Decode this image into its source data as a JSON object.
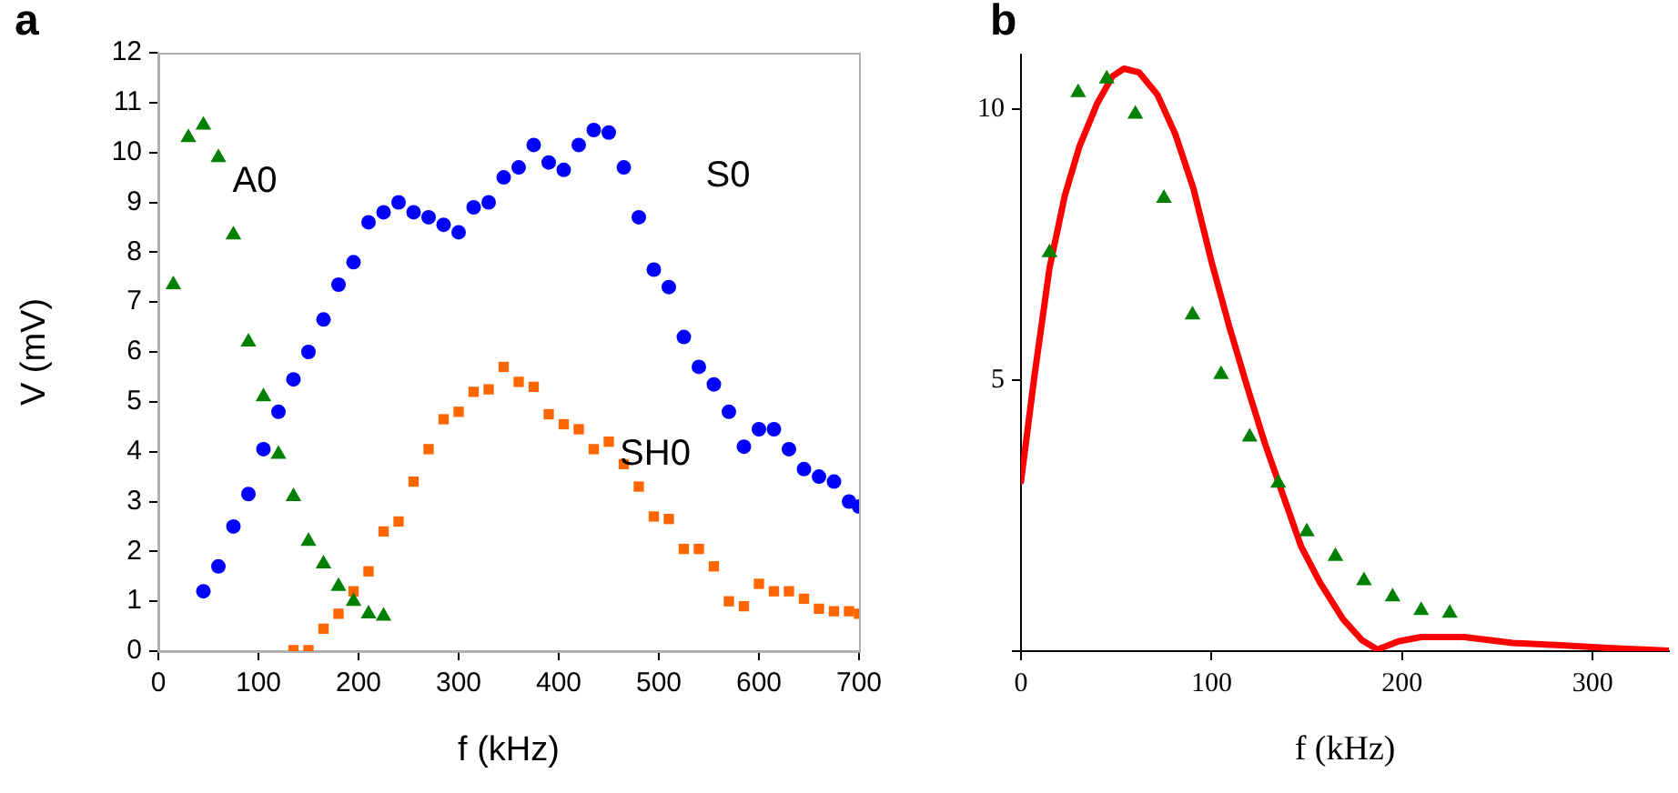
{
  "chart_data": [
    {
      "type": "scatter",
      "title": "a",
      "xlabel": "f (kHz)",
      "ylabel": "V (mV)",
      "xlim": [
        0,
        700
      ],
      "ylim": [
        0,
        12
      ],
      "xticks": [
        0,
        100,
        200,
        300,
        400,
        500,
        600,
        700
      ],
      "yticks": [
        0,
        1,
        2,
        3,
        4,
        5,
        6,
        7,
        8,
        9,
        10,
        11,
        12
      ],
      "series": [
        {
          "color": "#008000",
          "marker": "triangle",
          "x": [
            15,
            30,
            45,
            60,
            75,
            90,
            105,
            120,
            135,
            150,
            165,
            180,
            195,
            210,
            225
          ],
          "values": [
            7.35,
            10.3,
            10.55,
            9.9,
            8.35,
            6.2,
            5.1,
            3.95,
            3.1,
            2.2,
            1.75,
            1.3,
            1.0,
            0.75,
            0.7
          ]
        },
        {
          "color": "#0000ff",
          "marker": "circle",
          "x": [
            45,
            60,
            75,
            90,
            105,
            120,
            135,
            150,
            165,
            180,
            195,
            210,
            225,
            240,
            255,
            270,
            285,
            300,
            315,
            330,
            345,
            360,
            375,
            390,
            405,
            420,
            435,
            450,
            465,
            480,
            495,
            510,
            525,
            540,
            555,
            570,
            585,
            600,
            615,
            630,
            645,
            660,
            675,
            690,
            700
          ],
          "values": [
            1.2,
            1.7,
            2.5,
            3.15,
            4.05,
            4.8,
            5.45,
            6.0,
            6.65,
            7.35,
            7.8,
            8.6,
            8.8,
            9.0,
            8.8,
            8.7,
            8.55,
            8.4,
            8.9,
            9.0,
            9.5,
            9.7,
            10.15,
            9.8,
            9.65,
            10.15,
            10.45,
            10.4,
            9.7,
            8.7,
            7.65,
            7.3,
            6.3,
            5.7,
            5.35,
            4.8,
            4.1,
            4.45,
            4.45,
            4.05,
            3.65,
            3.5,
            3.4,
            3.0,
            2.9
          ]
        },
        {
          "color": "#ff6600",
          "marker": "square",
          "x": [
            135,
            150,
            165,
            180,
            195,
            210,
            225,
            240,
            255,
            270,
            285,
            300,
            315,
            330,
            345,
            360,
            375,
            390,
            405,
            420,
            435,
            450,
            465,
            480,
            495,
            510,
            525,
            540,
            555,
            570,
            585,
            600,
            615,
            630,
            645,
            660,
            675,
            690,
            700
          ],
          "values": [
            0.02,
            0.02,
            0.45,
            0.75,
            1.2,
            1.6,
            2.4,
            2.6,
            3.4,
            4.05,
            4.65,
            4.8,
            5.2,
            5.25,
            5.7,
            5.4,
            5.3,
            4.75,
            4.55,
            4.45,
            4.05,
            4.2,
            3.75,
            3.3,
            2.7,
            2.65,
            2.05,
            2.05,
            1.7,
            1.0,
            0.9,
            1.35,
            1.2,
            1.2,
            1.05,
            0.85,
            0.8,
            0.8,
            0.75
          ]
        }
      ],
      "annotations": [
        "A0",
        "S0",
        "SH0"
      ]
    },
    {
      "type": "scatter",
      "title": "b",
      "xlabel": "f (kHz)",
      "xlim": [
        0,
        340
      ],
      "ylim": [
        0,
        11
      ],
      "xticks": [
        0,
        100,
        200,
        300
      ],
      "yticks": [
        {
          "value": 0,
          "label": null
        },
        5,
        10
      ],
      "series": [
        {
          "type": "scatter",
          "color": "#008000",
          "marker": "triangle",
          "x": [
            15,
            30,
            45,
            60,
            75,
            90,
            105,
            120,
            135,
            150,
            165,
            180,
            195,
            210,
            225
          ],
          "values": [
            7.35,
            10.3,
            10.55,
            9.9,
            8.35,
            6.2,
            5.1,
            3.95,
            3.1,
            2.2,
            1.75,
            1.3,
            1.0,
            0.75,
            0.7
          ]
        },
        {
          "type": "line",
          "color": "#ff0000",
          "marker": "none",
          "line_style": "solid",
          "x": [
            0,
            7,
            15,
            23,
            30.6,
            40,
            48,
            54,
            62,
            71.6,
            81,
            90.5,
            100,
            109.5,
            119,
            128,
            138,
            147,
            157,
            169,
            179,
            187,
            198,
            210,
            232.5,
            258,
            283,
            308,
            327,
            340
          ],
          "values": [
            3.13,
            5.06,
            7.07,
            8.4,
            9.3,
            10.1,
            10.6,
            10.74,
            10.67,
            10.26,
            9.53,
            8.53,
            7.18,
            5.96,
            4.84,
            3.83,
            2.83,
            1.93,
            1.26,
            0.59,
            0.2,
            0.03,
            0.18,
            0.26,
            0.26,
            0.15,
            0.11,
            0.06,
            0.03,
            0.01
          ]
        }
      ]
    }
  ]
}
